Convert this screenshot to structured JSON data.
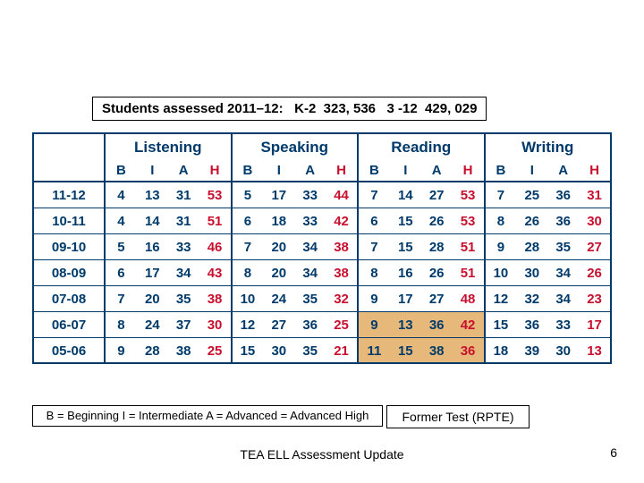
{
  "banner": "Students assessed 2011–12:   K-2  323, 536   3 -12  429, 029",
  "skills": [
    "Listening",
    "Speaking",
    "Reading",
    "Writing"
  ],
  "levels": [
    "B",
    "I",
    "A",
    "H"
  ],
  "level_colors": [
    "#003a6a",
    "#003a6a",
    "#003a6a",
    "#c8102e"
  ],
  "rows": [
    {
      "year": "11-12",
      "vals": [
        [
          4,
          13,
          31,
          53
        ],
        [
          5,
          17,
          33,
          44
        ],
        [
          7,
          14,
          27,
          53
        ],
        [
          7,
          25,
          36,
          31
        ]
      ],
      "hl": []
    },
    {
      "year": "10-11",
      "vals": [
        [
          4,
          14,
          31,
          51
        ],
        [
          6,
          18,
          33,
          42
        ],
        [
          6,
          15,
          26,
          53
        ],
        [
          8,
          26,
          36,
          30
        ]
      ],
      "hl": []
    },
    {
      "year": "09-10",
      "vals": [
        [
          5,
          16,
          33,
          46
        ],
        [
          7,
          20,
          34,
          38
        ],
        [
          7,
          15,
          28,
          51
        ],
        [
          9,
          28,
          35,
          27
        ]
      ],
      "hl": []
    },
    {
      "year": "08-09",
      "vals": [
        [
          6,
          17,
          34,
          43
        ],
        [
          8,
          20,
          34,
          38
        ],
        [
          8,
          16,
          26,
          51
        ],
        [
          10,
          30,
          34,
          26
        ]
      ],
      "hl": []
    },
    {
      "year": "07-08",
      "vals": [
        [
          7,
          20,
          35,
          38
        ],
        [
          10,
          24,
          35,
          32
        ],
        [
          9,
          17,
          27,
          48
        ],
        [
          12,
          32,
          34,
          23
        ]
      ],
      "hl": []
    },
    {
      "year": "06-07",
      "vals": [
        [
          8,
          24,
          37,
          30
        ],
        [
          12,
          27,
          36,
          25
        ],
        [
          9,
          13,
          36,
          42
        ],
        [
          15,
          36,
          33,
          17
        ]
      ],
      "hl": [
        2
      ]
    },
    {
      "year": "05-06",
      "vals": [
        [
          9,
          28,
          38,
          25
        ],
        [
          15,
          30,
          35,
          21
        ],
        [
          11,
          15,
          38,
          36
        ],
        [
          18,
          39,
          30,
          13
        ]
      ],
      "hl": [
        2
      ]
    }
  ],
  "legend": "B = Beginning  I = Intermediate  A = Advanced  = Advanced High",
  "former": "Former Test (RPTE)",
  "footer": "TEA ELL Assessment Update",
  "pagenum": "6",
  "colors": {
    "border": "#003a6a",
    "blue": "#003a6a",
    "red": "#c8102e",
    "highlight": "#e6b87a",
    "background": "#ffffff"
  }
}
